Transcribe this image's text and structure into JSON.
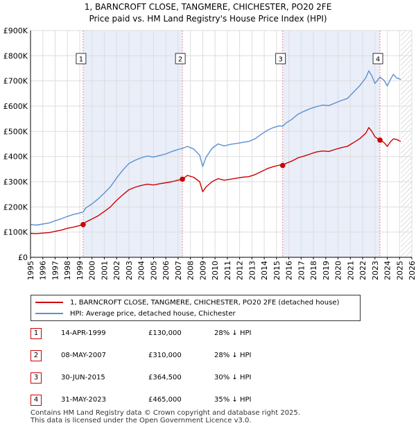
{
  "colors": {
    "property": "#cc0000",
    "hpi": "#5b8fd1",
    "shade": "#e9eef9",
    "marker_border": "#cc0000"
  },
  "chart_data": {
    "type": "line",
    "title": "1, BARNCROFT CLOSE, TANGMERE, CHICHESTER, PO20 2FE",
    "subtitle": "Price paid vs. HM Land Registry's House Price Index (HPI)",
    "xlabel": "",
    "ylabel": "",
    "xlim": [
      1995,
      2026
    ],
    "ylim": [
      0,
      900000
    ],
    "x_ticks": [
      "1995",
      "1996",
      "1997",
      "1998",
      "1999",
      "2000",
      "2001",
      "2002",
      "2003",
      "2004",
      "2005",
      "2006",
      "2007",
      "2008",
      "2009",
      "2010",
      "2011",
      "2012",
      "2013",
      "2014",
      "2015",
      "2016",
      "2017",
      "2018",
      "2019",
      "2020",
      "2021",
      "2022",
      "2023",
      "2024",
      "2025",
      "2026"
    ],
    "y_ticks": [
      {
        "value": 0,
        "label": "£0"
      },
      {
        "value": 100000,
        "label": "£100K"
      },
      {
        "value": 200000,
        "label": "£200K"
      },
      {
        "value": 300000,
        "label": "£300K"
      },
      {
        "value": 400000,
        "label": "£400K"
      },
      {
        "value": 500000,
        "label": "£500K"
      },
      {
        "value": 600000,
        "label": "£600K"
      },
      {
        "value": 700000,
        "label": "£700K"
      },
      {
        "value": 800000,
        "label": "£800K"
      },
      {
        "value": 900000,
        "label": "£900K"
      }
    ],
    "grid": true,
    "shaded_ranges": [
      [
        1999.28,
        2007.35
      ],
      [
        2015.5,
        2023.41
      ]
    ],
    "future_hatch_start": 2025.1,
    "series": [
      {
        "name": "1, BARNCROFT CLOSE, TANGMERE, CHICHESTER, PO20 2FE (detached house)",
        "x": [
          1995.0,
          1995.5,
          1996.0,
          1996.5,
          1997.0,
          1997.5,
          1998.0,
          1998.5,
          1999.0,
          1999.28,
          1999.5,
          2000.0,
          2000.5,
          2001.0,
          2001.5,
          2002.0,
          2002.5,
          2003.0,
          2003.5,
          2004.0,
          2004.5,
          2005.0,
          2005.5,
          2006.0,
          2006.5,
          2007.0,
          2007.35,
          2007.75,
          2008.25,
          2008.75,
          2009.0,
          2009.25,
          2009.75,
          2010.25,
          2010.75,
          2011.25,
          2011.75,
          2012.25,
          2012.75,
          2013.25,
          2013.75,
          2014.25,
          2014.75,
          2015.25,
          2015.5,
          2015.75,
          2016.25,
          2016.75,
          2017.25,
          2017.75,
          2018.25,
          2018.75,
          2019.25,
          2019.75,
          2020.25,
          2020.75,
          2021.25,
          2021.75,
          2022.25,
          2022.5,
          2022.75,
          2023.0,
          2023.41,
          2023.75,
          2024.0,
          2024.25,
          2024.5,
          2024.75,
          2025.0,
          2025.1
        ],
        "y": [
          95000,
          94000,
          96000,
          98000,
          103000,
          108000,
          115000,
          120000,
          126000,
          130000,
          140000,
          152000,
          165000,
          182000,
          200000,
          226000,
          248000,
          268000,
          278000,
          285000,
          290000,
          287000,
          292000,
          296000,
          300000,
          306000,
          310000,
          325000,
          318000,
          300000,
          260000,
          278000,
          300000,
          312000,
          306000,
          310000,
          314000,
          318000,
          320000,
          328000,
          340000,
          352000,
          360000,
          366000,
          364500,
          372000,
          382000,
          395000,
          402000,
          410000,
          418000,
          422000,
          420000,
          428000,
          435000,
          440000,
          455000,
          470000,
          492000,
          515000,
          500000,
          478000,
          465000,
          455000,
          440000,
          458000,
          470000,
          468000,
          462000,
          460000
        ]
      },
      {
        "name": "HPI: Average price, detached house, Chichester",
        "x": [
          1995.0,
          1995.5,
          1996.0,
          1996.5,
          1997.0,
          1997.5,
          1998.0,
          1998.5,
          1999.0,
          1999.28,
          1999.5,
          2000.0,
          2000.5,
          2001.0,
          2001.5,
          2002.0,
          2002.5,
          2003.0,
          2003.5,
          2004.0,
          2004.5,
          2005.0,
          2005.5,
          2006.0,
          2006.5,
          2007.0,
          2007.35,
          2007.75,
          2008.25,
          2008.75,
          2009.0,
          2009.25,
          2009.75,
          2010.25,
          2010.75,
          2011.25,
          2011.75,
          2012.25,
          2012.75,
          2013.25,
          2013.75,
          2014.25,
          2014.75,
          2015.25,
          2015.5,
          2015.75,
          2016.25,
          2016.75,
          2017.25,
          2017.75,
          2018.25,
          2018.75,
          2019.25,
          2019.75,
          2020.25,
          2020.75,
          2021.25,
          2021.75,
          2022.25,
          2022.5,
          2022.75,
          2023.0,
          2023.41,
          2023.75,
          2024.0,
          2024.25,
          2024.5,
          2024.75,
          2025.0,
          2025.1
        ],
        "y": [
          130000,
          128000,
          132000,
          136000,
          145000,
          153000,
          162000,
          170000,
          176000,
          180000,
          196000,
          212000,
          232000,
          255000,
          280000,
          315000,
          346000,
          372000,
          385000,
          395000,
          402000,
          398000,
          404000,
          410000,
          420000,
          428000,
          432000,
          440000,
          430000,
          405000,
          360000,
          395000,
          432000,
          450000,
          442000,
          448000,
          452000,
          456000,
          460000,
          470000,
          488000,
          504000,
          515000,
          522000,
          520000,
          532000,
          548000,
          568000,
          580000,
          590000,
          598000,
          604000,
          602000,
          612000,
          622000,
          630000,
          655000,
          680000,
          712000,
          740000,
          720000,
          690000,
          715000,
          702000,
          680000,
          705000,
          726000,
          712000,
          708000,
          705000
        ]
      }
    ],
    "sales": [
      {
        "num": "1",
        "x": 1999.28,
        "y": 130000
      },
      {
        "num": "2",
        "x": 2007.35,
        "y": 310000
      },
      {
        "num": "3",
        "x": 2015.5,
        "y": 364500
      },
      {
        "num": "4",
        "x": 2023.41,
        "y": 465000
      }
    ]
  },
  "legend": {
    "property": "1, BARNCROFT CLOSE, TANGMERE, CHICHESTER, PO20 2FE (detached house)",
    "hpi": "HPI: Average price, detached house, Chichester"
  },
  "sales_table": [
    {
      "num": "1",
      "date": "14-APR-1999",
      "price": "£130,000",
      "hpi": "28% ↓ HPI"
    },
    {
      "num": "2",
      "date": "08-MAY-2007",
      "price": "£310,000",
      "hpi": "28% ↓ HPI"
    },
    {
      "num": "3",
      "date": "30-JUN-2015",
      "price": "£364,500",
      "hpi": "30% ↓ HPI"
    },
    {
      "num": "4",
      "date": "31-MAY-2023",
      "price": "£465,000",
      "hpi": "35% ↓ HPI"
    }
  ],
  "footer": {
    "line1": "Contains HM Land Registry data © Crown copyright and database right 2025.",
    "line2": "This data is licensed under the Open Government Licence v3.0."
  }
}
